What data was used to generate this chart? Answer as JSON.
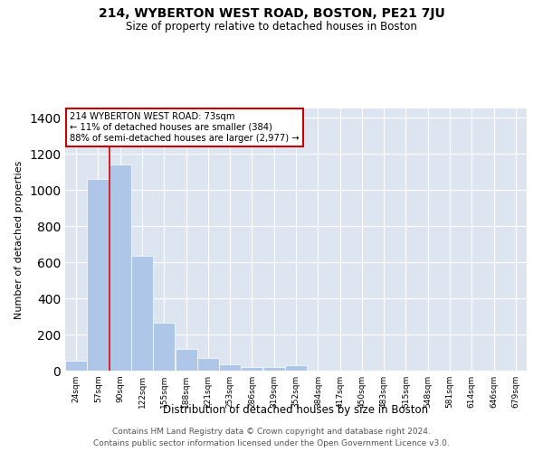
{
  "title_main": "214, WYBERTON WEST ROAD, BOSTON, PE21 7JU",
  "title_sub": "Size of property relative to detached houses in Boston",
  "xlabel": "Distribution of detached houses by size in Boston",
  "ylabel": "Number of detached properties",
  "footnote1": "Contains HM Land Registry data © Crown copyright and database right 2024.",
  "footnote2": "Contains public sector information licensed under the Open Government Licence v3.0.",
  "bar_color": "#aec6e8",
  "bg_color": "#dde5f0",
  "grid_color": "#ffffff",
  "annotation_box_text": "214 WYBERTON WEST ROAD: 73sqm\n← 11% of detached houses are smaller (384)\n88% of semi-detached houses are larger (2,977) →",
  "annotation_box_color": "#cc0000",
  "vline_color": "#cc0000",
  "categories": [
    "24sqm",
    "57sqm",
    "90sqm",
    "122sqm",
    "155sqm",
    "188sqm",
    "221sqm",
    "253sqm",
    "286sqm",
    "319sqm",
    "352sqm",
    "384sqm",
    "417sqm",
    "450sqm",
    "483sqm",
    "515sqm",
    "548sqm",
    "581sqm",
    "614sqm",
    "646sqm",
    "679sqm"
  ],
  "bin_left_edges": [
    7.5,
    40.5,
    73.5,
    106.5,
    139.5,
    172.5,
    205.5,
    238.5,
    271.5,
    304.5,
    337.5,
    370.5,
    403.5,
    436.5,
    469.5,
    502.5,
    535.5,
    568.5,
    601.5,
    634.5,
    667.5
  ],
  "bin_width": 33,
  "values": [
    55,
    1060,
    1140,
    635,
    265,
    120,
    70,
    35,
    20,
    20,
    30,
    0,
    0,
    0,
    0,
    0,
    0,
    0,
    0,
    0,
    0
  ],
  "vline_x_bin": 1,
  "ylim": [
    0,
    1450
  ],
  "yticks": [
    0,
    200,
    400,
    600,
    800,
    1000,
    1200,
    1400
  ]
}
